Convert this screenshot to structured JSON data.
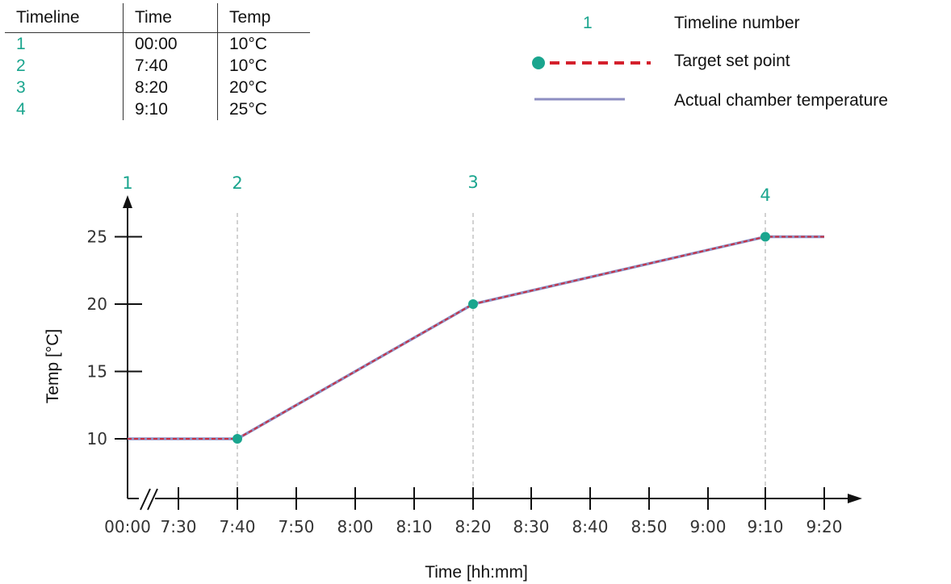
{
  "table": {
    "headers": [
      "Timeline",
      "Time",
      "Temp"
    ],
    "rows": [
      [
        "1",
        "00:00",
        "10°C"
      ],
      [
        "2",
        "7:40",
        "10°C"
      ],
      [
        "3",
        "8:20",
        "20°C"
      ],
      [
        "4",
        "9:10",
        "25°C"
      ]
    ]
  },
  "legend": {
    "number_symbol": "1",
    "number_label": "Timeline number",
    "target_label": "Target set point",
    "actual_label": "Actual chamber temperature"
  },
  "colors": {
    "teal": "#1aa58e",
    "target_dash": "#d4202c",
    "actual_line": "#8d8ec2",
    "grid": "#b5b5b5"
  },
  "chart_data": {
    "type": "line",
    "xlabel": "Time [hh:mm]",
    "ylabel": "Temp [°C]",
    "x_tick_labels": [
      "00:00",
      "7:30",
      "7:40",
      "7:50",
      "8:00",
      "8:10",
      "8:20",
      "8:30",
      "8:40",
      "8:50",
      "9:00",
      "9:10",
      "9:20"
    ],
    "x_axis_break": "between 00:00 and 7:30",
    "y_ticks": [
      10,
      15,
      20,
      25
    ],
    "series": [
      {
        "name": "Target set point",
        "points": [
          [
            "00:00",
            10
          ],
          [
            "7:40",
            10
          ],
          [
            "8:20",
            20
          ],
          [
            "9:10",
            25
          ],
          [
            "9:20",
            25
          ]
        ]
      },
      {
        "name": "Actual chamber temperature",
        "points": [
          [
            "00:00",
            10
          ],
          [
            "7:40",
            10
          ],
          [
            "8:20",
            20
          ],
          [
            "9:10",
            25
          ],
          [
            "9:20",
            25
          ]
        ]
      }
    ],
    "timeline_markers": [
      {
        "label": "1",
        "time": "00:00",
        "temp": 10
      },
      {
        "label": "2",
        "time": "7:40",
        "temp": 10
      },
      {
        "label": "3",
        "time": "8:20",
        "temp": 20
      },
      {
        "label": "4",
        "time": "9:10",
        "temp": 25
      }
    ]
  }
}
